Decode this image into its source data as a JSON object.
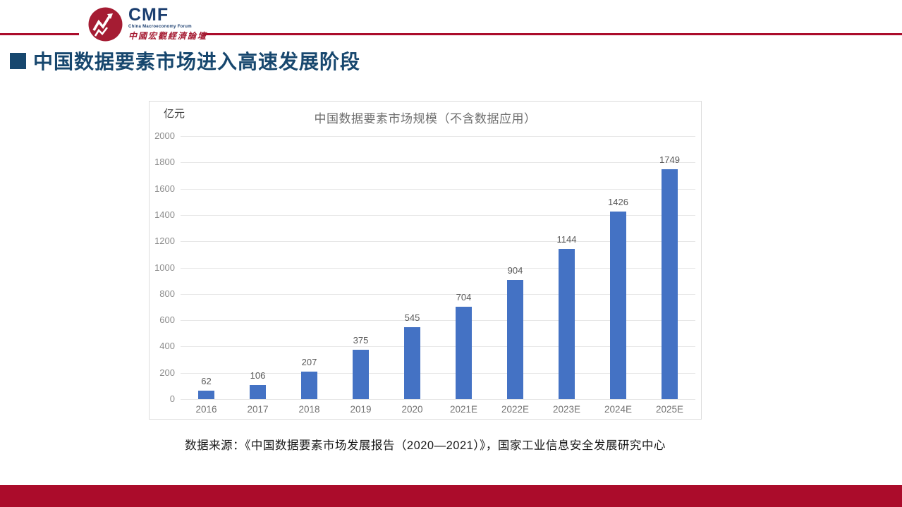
{
  "header": {
    "logo": {
      "acronym": "CMF",
      "subtitle": "China Macroeconomy Forum",
      "chinese": "中國宏觀經濟論壇"
    }
  },
  "slide": {
    "title": "中国数据要素市场进入高速发展阶段",
    "source": "数据来源：《中国数据要素市场发展报告（2020—2021）》，国家工业信息安全发展研究中心"
  },
  "chart_data": {
    "type": "bar",
    "title": "中国数据要素市场规模（不含数据应用）",
    "unit_label": "亿元",
    "categories": [
      "2016",
      "2017",
      "2018",
      "2019",
      "2020",
      "2021E",
      "2022E",
      "2023E",
      "2024E",
      "2025E"
    ],
    "values": [
      62,
      106,
      207,
      375,
      545,
      704,
      904,
      1144,
      1426,
      1749
    ],
    "ylabel": "亿元",
    "xlabel": "",
    "ylim": [
      0,
      2000
    ],
    "y_tick_step": 200,
    "grid": true,
    "data_labels": true,
    "legend": "none",
    "bar_color": "#4472C4"
  },
  "colors": {
    "accent_red": "#AB0C2B",
    "logo_red": "#A51C33",
    "title_navy": "#17476E",
    "bar_blue": "#4472C4"
  }
}
